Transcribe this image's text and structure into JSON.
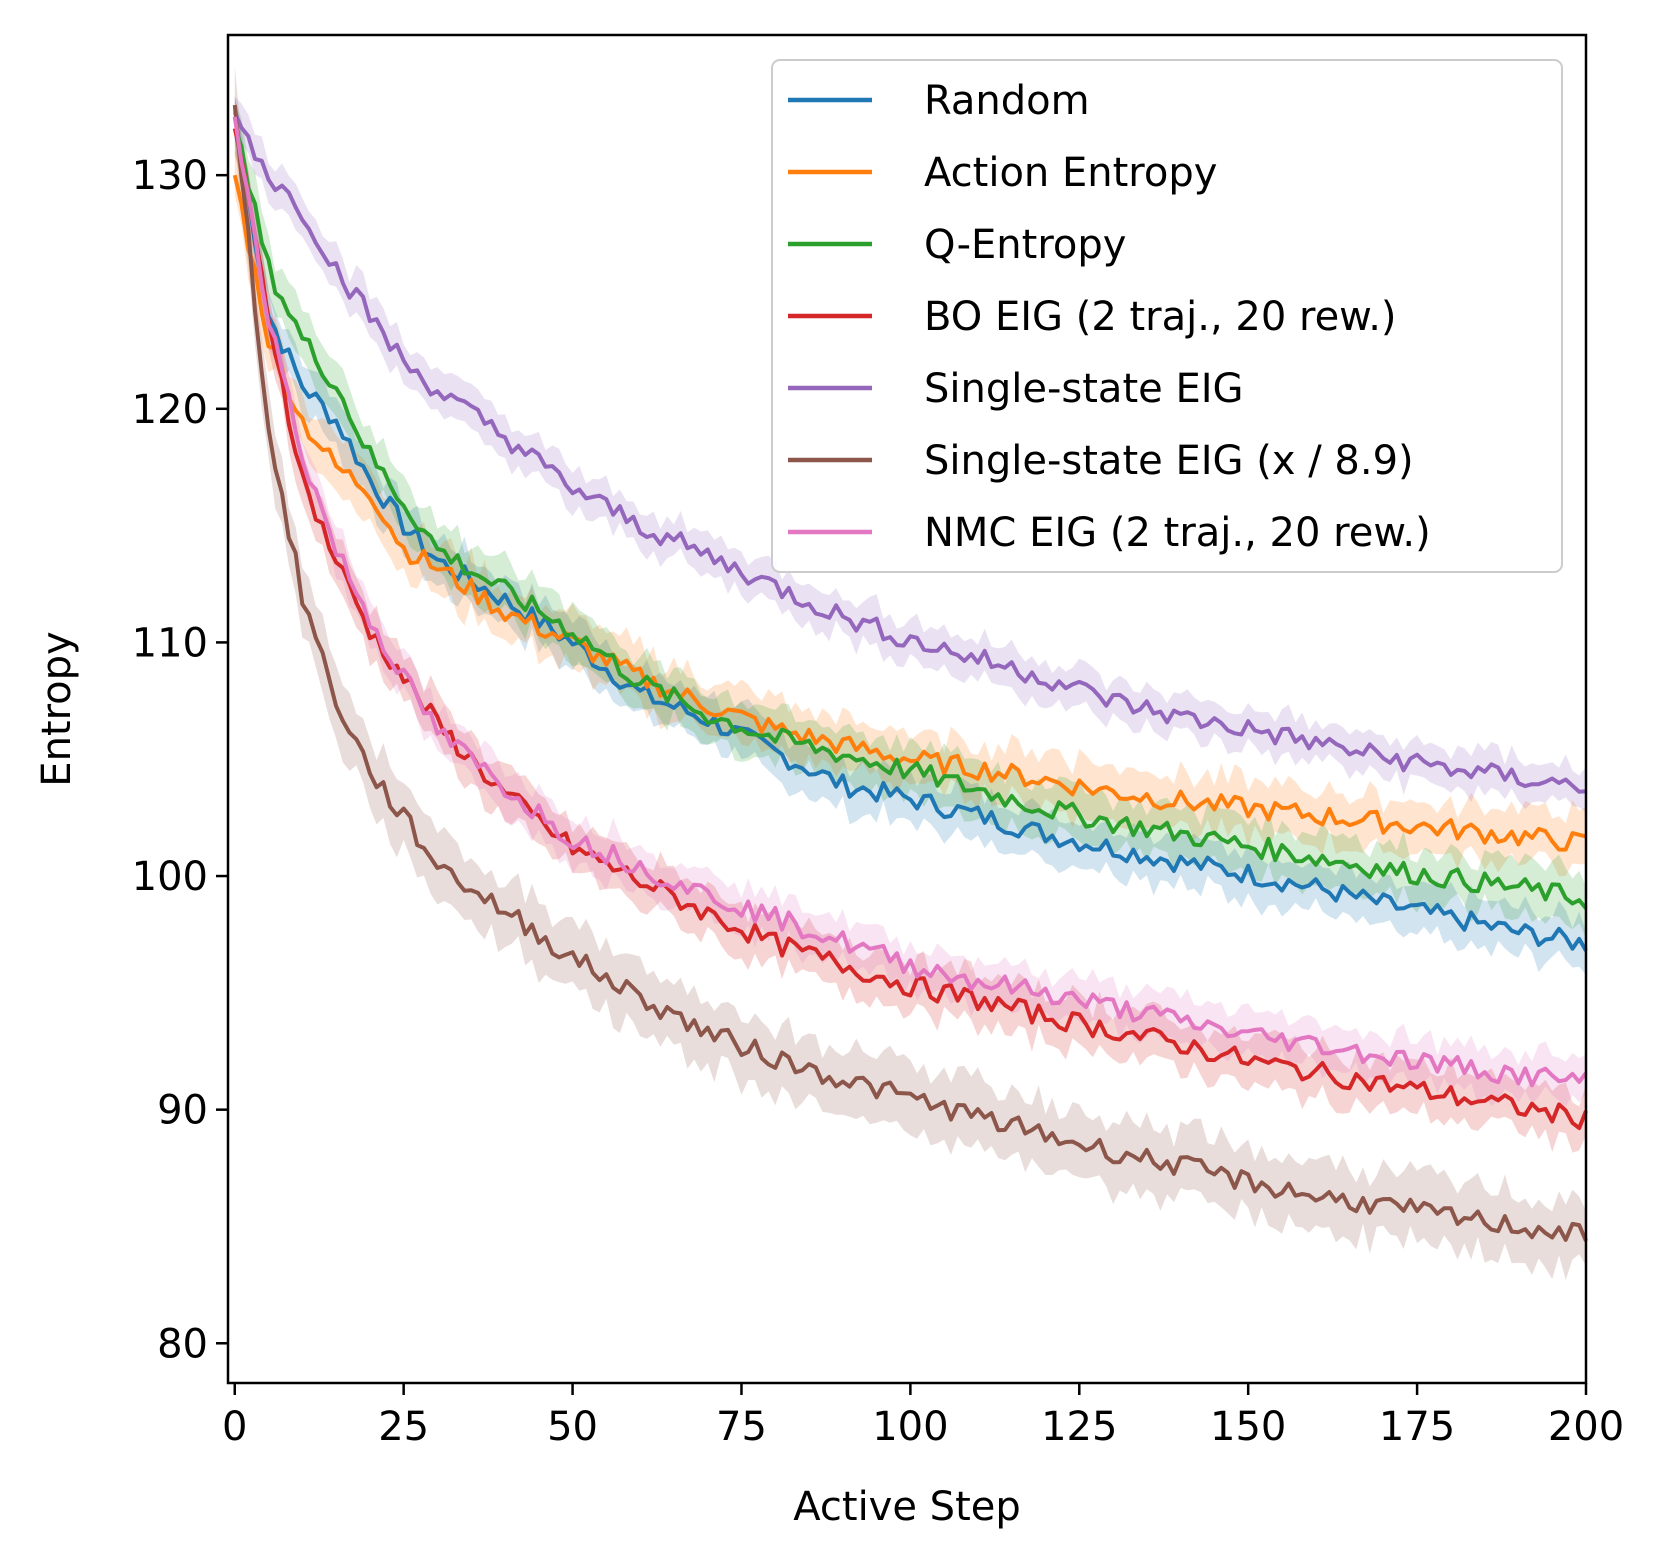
{
  "chart_data": {
    "type": "line",
    "title": "",
    "xlabel": "Active Step",
    "ylabel": "Entropy",
    "xlim": [
      -1,
      200
    ],
    "ylim": [
      78.3,
      136
    ],
    "xticks": [
      0,
      25,
      50,
      75,
      100,
      125,
      150,
      175,
      200
    ],
    "yticks": [
      80,
      90,
      100,
      110,
      120,
      130
    ],
    "legend_position": "top-right",
    "series": [
      {
        "name": "Random",
        "color": "#1f77b4",
        "points": [
          [
            0,
            132.5
          ],
          [
            5,
            124
          ],
          [
            10,
            121
          ],
          [
            15,
            119.5
          ],
          [
            20,
            117
          ],
          [
            25,
            115
          ],
          [
            30,
            113.5
          ],
          [
            40,
            111.8
          ],
          [
            50,
            110
          ],
          [
            60,
            107.8
          ],
          [
            70,
            106.7
          ],
          [
            80,
            105.3
          ],
          [
            90,
            103.9
          ],
          [
            100,
            103.3
          ],
          [
            110,
            102.6
          ],
          [
            120,
            101.8
          ],
          [
            130,
            101.2
          ],
          [
            140,
            100.6
          ],
          [
            150,
            100.1
          ],
          [
            160,
            99.5
          ],
          [
            170,
            98.8
          ],
          [
            180,
            98.2
          ],
          [
            190,
            97.6
          ],
          [
            200,
            97.1
          ]
        ],
        "band": 1.1
      },
      {
        "name": "Action Entropy",
        "color": "#ff7f0e",
        "points": [
          [
            0,
            130
          ],
          [
            5,
            123
          ],
          [
            10,
            119.5
          ],
          [
            15,
            117.5
          ],
          [
            20,
            116.5
          ],
          [
            25,
            114
          ],
          [
            30,
            113.2
          ],
          [
            40,
            111.3
          ],
          [
            50,
            110
          ],
          [
            60,
            108.5
          ],
          [
            70,
            107.3
          ],
          [
            80,
            106.3
          ],
          [
            90,
            105.6
          ],
          [
            100,
            105
          ],
          [
            110,
            104.6
          ],
          [
            120,
            104.1
          ],
          [
            130,
            103.6
          ],
          [
            140,
            103.2
          ],
          [
            150,
            102.9
          ],
          [
            160,
            102.6
          ],
          [
            170,
            102.3
          ],
          [
            180,
            102
          ],
          [
            190,
            101.7
          ],
          [
            200,
            101.4
          ]
        ],
        "band": 1.2
      },
      {
        "name": "Q-Entropy",
        "color": "#2ca02c",
        "points": [
          [
            0,
            132
          ],
          [
            5,
            126
          ],
          [
            10,
            123
          ],
          [
            15,
            121
          ],
          [
            20,
            118
          ],
          [
            25,
            116
          ],
          [
            30,
            114
          ],
          [
            40,
            112.2
          ],
          [
            50,
            110.5
          ],
          [
            60,
            108.3
          ],
          [
            70,
            106.9
          ],
          [
            80,
            105.9
          ],
          [
            90,
            105.2
          ],
          [
            100,
            104.5
          ],
          [
            110,
            103.7
          ],
          [
            120,
            102.9
          ],
          [
            130,
            102.3
          ],
          [
            140,
            101.8
          ],
          [
            150,
            101.3
          ],
          [
            160,
            100.8
          ],
          [
            170,
            100.3
          ],
          [
            180,
            99.9
          ],
          [
            190,
            99.5
          ],
          [
            200,
            99
          ]
        ],
        "band": 1.2
      },
      {
        "name": "BO EIG (2 traj., 20 rew.)",
        "color": "#d62728",
        "points": [
          [
            0,
            132
          ],
          [
            5,
            124
          ],
          [
            10,
            117
          ],
          [
            15,
            113.5
          ],
          [
            20,
            110.5
          ],
          [
            25,
            108.5
          ],
          [
            30,
            106.5
          ],
          [
            40,
            103.5
          ],
          [
            50,
            101.2
          ],
          [
            60,
            99.8
          ],
          [
            70,
            98.4
          ],
          [
            80,
            97.1
          ],
          [
            90,
            96.2
          ],
          [
            100,
            95.3
          ],
          [
            110,
            94.7
          ],
          [
            120,
            94
          ],
          [
            130,
            93.4
          ],
          [
            140,
            92.8
          ],
          [
            150,
            92.1
          ],
          [
            160,
            91.6
          ],
          [
            170,
            91.1
          ],
          [
            180,
            90.6
          ],
          [
            190,
            90.1
          ],
          [
            200,
            89.6
          ]
        ],
        "band": 1.1
      },
      {
        "name": "Single-state EIG",
        "color": "#9467bd",
        "points": [
          [
            0,
            132.7
          ],
          [
            5,
            130
          ],
          [
            10,
            128.5
          ],
          [
            15,
            126
          ],
          [
            20,
            124
          ],
          [
            25,
            122
          ],
          [
            30,
            120.8
          ],
          [
            40,
            118.8
          ],
          [
            50,
            116.6
          ],
          [
            60,
            115
          ],
          [
            70,
            113.7
          ],
          [
            80,
            112.4
          ],
          [
            90,
            111.1
          ],
          [
            100,
            110.1
          ],
          [
            110,
            109.3
          ],
          [
            120,
            108.5
          ],
          [
            130,
            107.5
          ],
          [
            140,
            106.8
          ],
          [
            150,
            106.3
          ],
          [
            160,
            105.7
          ],
          [
            170,
            105.1
          ],
          [
            180,
            104.6
          ],
          [
            190,
            104.2
          ],
          [
            200,
            103.8
          ]
        ],
        "band": 0.9
      },
      {
        "name": "Single-state EIG (x / 8.9)",
        "color": "#8c564b",
        "points": [
          [
            0,
            133
          ],
          [
            5,
            119
          ],
          [
            10,
            112
          ],
          [
            15,
            107.5
          ],
          [
            20,
            104.5
          ],
          [
            25,
            102.5
          ],
          [
            30,
            100.5
          ],
          [
            40,
            98.5
          ],
          [
            50,
            96.5
          ],
          [
            60,
            94.8
          ],
          [
            70,
            93.3
          ],
          [
            80,
            92.2
          ],
          [
            90,
            91.3
          ],
          [
            100,
            90.5
          ],
          [
            110,
            89.7
          ],
          [
            120,
            88.9
          ],
          [
            130,
            88.2
          ],
          [
            140,
            87.6
          ],
          [
            150,
            86.9
          ],
          [
            160,
            86.3
          ],
          [
            170,
            85.9
          ],
          [
            180,
            85.4
          ],
          [
            190,
            85
          ],
          [
            200,
            84.6
          ]
        ],
        "band": 1.5
      },
      {
        "name": "NMC EIG (2 traj., 20 rew.)",
        "color": "#e377c2",
        "points": [
          [
            0,
            132.5
          ],
          [
            5,
            124
          ],
          [
            10,
            118
          ],
          [
            15,
            114
          ],
          [
            20,
            111
          ],
          [
            25,
            108.5
          ],
          [
            30,
            106.2
          ],
          [
            40,
            103.8
          ],
          [
            50,
            101.6
          ],
          [
            60,
            100.4
          ],
          [
            70,
            99.2
          ],
          [
            80,
            98.2
          ],
          [
            90,
            97.2
          ],
          [
            100,
            96.2
          ],
          [
            110,
            95.5
          ],
          [
            120,
            95
          ],
          [
            130,
            94.4
          ],
          [
            140,
            93.8
          ],
          [
            150,
            93.2
          ],
          [
            160,
            92.8
          ],
          [
            170,
            92.3
          ],
          [
            180,
            91.9
          ],
          [
            190,
            91.5
          ],
          [
            200,
            91.2
          ]
        ],
        "band": 1.0
      }
    ]
  }
}
